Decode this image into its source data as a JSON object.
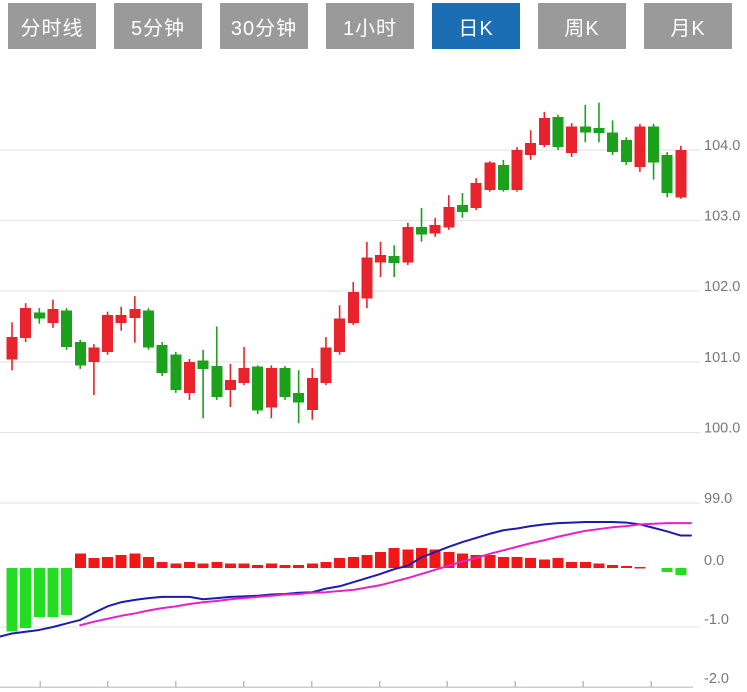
{
  "tabs": [
    {
      "label": "分时线",
      "active": false
    },
    {
      "label": "5分钟",
      "active": false
    },
    {
      "label": "30分钟",
      "active": false
    },
    {
      "label": "1小时",
      "active": false
    },
    {
      "label": "日K",
      "active": true
    },
    {
      "label": "周K",
      "active": false
    },
    {
      "label": "月K",
      "active": false
    }
  ],
  "colors": {
    "up_candle": "#e8232b",
    "down_candle": "#1ba11b",
    "hist_up": "#f21717",
    "hist_down": "#23dd23",
    "dif_line": "#1c1cac",
    "dea_line": "#e821c9",
    "grid": "#e2e2e2",
    "axis_line": "#c9ced6",
    "tick": "#aebfd2",
    "label": "#787878",
    "tab_bg": "#9a9a9a",
    "tab_active": "#1b6db4",
    "tab_text": "#ffffff"
  },
  "chart_data": {
    "type": "candlestick+macd",
    "grid": true,
    "legend": false,
    "price_axis": {
      "side": "right",
      "tick_labels": [
        "104.0",
        "103.0",
        "102.0",
        "101.0",
        "100.0",
        "99.0"
      ],
      "tick_values": [
        104.0,
        103.0,
        102.0,
        101.0,
        100.0,
        99.0
      ],
      "range": [
        98.9,
        105.0
      ]
    },
    "macd_axis": {
      "side": "right",
      "tick_labels": [
        "0.0",
        "-1.0",
        "-2.0"
      ],
      "tick_values": [
        0.0,
        -1.0,
        -2.0
      ],
      "range": [
        -2.0,
        1.1
      ]
    },
    "x_axis": {
      "tick_count": 10,
      "tick_labels": []
    },
    "candles_ohlc": [
      [
        101.03,
        101.56,
        100.88,
        101.35
      ],
      [
        101.34,
        101.83,
        101.28,
        101.76
      ],
      [
        101.7,
        101.76,
        101.54,
        101.61
      ],
      [
        101.55,
        101.88,
        101.48,
        101.75
      ],
      [
        101.73,
        101.76,
        101.17,
        101.21
      ],
      [
        101.28,
        101.31,
        100.9,
        100.95
      ],
      [
        101.0,
        101.25,
        100.53,
        101.2
      ],
      [
        101.14,
        101.71,
        101.1,
        101.66
      ],
      [
        101.55,
        101.78,
        101.44,
        101.66
      ],
      [
        101.62,
        101.93,
        101.27,
        101.75
      ],
      [
        101.73,
        101.76,
        101.17,
        101.2
      ],
      [
        101.24,
        101.28,
        100.8,
        100.84
      ],
      [
        101.1,
        101.14,
        100.56,
        100.6
      ],
      [
        100.56,
        101.04,
        100.46,
        101.0
      ],
      [
        101.02,
        101.17,
        100.2,
        100.9
      ],
      [
        100.94,
        101.5,
        100.46,
        100.5
      ],
      [
        100.6,
        100.97,
        100.36,
        100.74
      ],
      [
        100.7,
        101.21,
        100.67,
        100.91
      ],
      [
        100.93,
        100.95,
        100.26,
        100.31
      ],
      [
        100.35,
        100.95,
        100.2,
        100.91
      ],
      [
        100.91,
        100.94,
        100.46,
        100.5
      ],
      [
        100.56,
        100.88,
        100.13,
        100.42
      ],
      [
        100.32,
        100.91,
        100.18,
        100.77
      ],
      [
        100.7,
        101.35,
        100.67,
        101.2
      ],
      [
        101.14,
        101.8,
        101.1,
        101.61
      ],
      [
        101.55,
        102.13,
        101.52,
        101.99
      ],
      [
        101.9,
        102.7,
        101.76,
        102.48
      ],
      [
        102.41,
        102.7,
        102.2,
        102.51
      ],
      [
        102.5,
        102.65,
        102.2,
        102.4
      ],
      [
        102.41,
        102.97,
        102.37,
        102.91
      ],
      [
        102.91,
        103.18,
        102.7,
        102.8
      ],
      [
        102.82,
        103.04,
        102.77,
        102.94
      ],
      [
        102.9,
        103.36,
        102.87,
        103.19
      ],
      [
        103.22,
        103.39,
        103.04,
        103.12
      ],
      [
        103.18,
        103.6,
        103.15,
        103.53
      ],
      [
        103.43,
        103.84,
        103.41,
        103.82
      ],
      [
        103.79,
        103.86,
        103.41,
        103.43
      ],
      [
        103.43,
        104.04,
        103.41,
        104.0
      ],
      [
        103.93,
        104.28,
        103.86,
        104.1
      ],
      [
        104.07,
        104.54,
        104.04,
        104.45
      ],
      [
        104.47,
        104.5,
        104.0,
        104.04
      ],
      [
        103.96,
        104.38,
        103.9,
        104.33
      ],
      [
        104.33,
        104.64,
        104.11,
        104.25
      ],
      [
        104.31,
        104.67,
        104.11,
        104.24
      ],
      [
        104.25,
        104.42,
        103.93,
        103.97
      ],
      [
        104.14,
        104.18,
        103.79,
        103.83
      ],
      [
        103.76,
        104.37,
        103.69,
        104.33
      ],
      [
        104.33,
        104.37,
        103.58,
        103.82
      ],
      [
        103.93,
        103.97,
        103.33,
        103.39
      ],
      [
        103.33,
        104.06,
        103.31,
        104.0
      ]
    ],
    "macd": {
      "histogram": [
        -1.08,
        -1.02,
        -0.83,
        -0.83,
        -0.8,
        0.25,
        0.17,
        0.19,
        0.22,
        0.25,
        0.19,
        0.1,
        0.08,
        0.1,
        0.08,
        0.1,
        0.08,
        0.08,
        0.05,
        0.08,
        0.05,
        0.05,
        0.08,
        0.1,
        0.17,
        0.19,
        0.22,
        0.27,
        0.34,
        0.31,
        0.34,
        0.31,
        0.27,
        0.25,
        0.22,
        0.22,
        0.19,
        0.19,
        0.17,
        0.14,
        0.17,
        0.1,
        0.1,
        0.08,
        0.05,
        0.03,
        0.02,
        0.0,
        -0.07,
        -0.12
      ],
      "dif": [
        -1.11,
        -1.08,
        -1.05,
        -1.0,
        -0.94,
        -0.88,
        -0.76,
        -0.65,
        -0.58,
        -0.54,
        -0.51,
        -0.49,
        -0.49,
        -0.49,
        -0.53,
        -0.51,
        -0.49,
        -0.48,
        -0.47,
        -0.45,
        -0.44,
        -0.42,
        -0.41,
        -0.35,
        -0.31,
        -0.24,
        -0.17,
        -0.1,
        -0.02,
        0.04,
        0.18,
        0.27,
        0.36,
        0.44,
        0.51,
        0.58,
        0.64,
        0.67,
        0.71,
        0.74,
        0.76,
        0.77,
        0.78,
        0.78,
        0.78,
        0.77,
        0.74,
        0.68,
        0.62,
        0.55
      ],
      "dea": [
        null,
        null,
        null,
        null,
        null,
        -0.97,
        -0.91,
        -0.86,
        -0.81,
        -0.77,
        -0.72,
        -0.68,
        -0.65,
        -0.61,
        -0.58,
        -0.56,
        -0.53,
        -0.51,
        -0.49,
        -0.47,
        -0.45,
        -0.44,
        -0.42,
        -0.41,
        -0.39,
        -0.37,
        -0.33,
        -0.29,
        -0.23,
        -0.17,
        -0.1,
        -0.03,
        0.04,
        0.11,
        0.17,
        0.24,
        0.3,
        0.36,
        0.42,
        0.47,
        0.53,
        0.58,
        0.63,
        0.66,
        0.69,
        0.71,
        0.74,
        0.75,
        0.76,
        0.76
      ]
    }
  }
}
